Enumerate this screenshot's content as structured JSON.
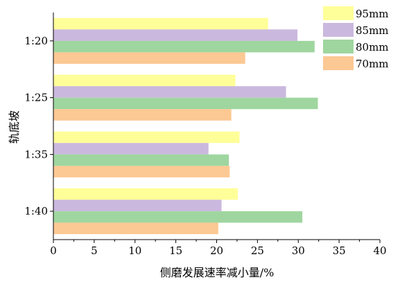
{
  "chart_data": {
    "type": "bar",
    "orientation": "horizontal",
    "title": "",
    "xlabel": "侧磨发展速率减小量/%",
    "ylabel": "轨底坡",
    "xlim": [
      0,
      40
    ],
    "xticks": [
      "0",
      "5",
      "10",
      "15",
      "20",
      "25",
      "30",
      "35",
      "40"
    ],
    "categories": [
      "1:20",
      "1:25",
      "1:35",
      "1:40"
    ],
    "series": [
      {
        "name": "95mm",
        "color": "#FFFF99",
        "values": [
          26.3,
          22.3,
          22.8,
          22.6
        ]
      },
      {
        "name": "85mm",
        "color": "#CBB8DE",
        "values": [
          29.9,
          28.5,
          19.0,
          20.6
        ]
      },
      {
        "name": "80mm",
        "color": "#9FD69F",
        "values": [
          32.0,
          32.4,
          21.5,
          30.5
        ]
      },
      {
        "name": "70mm",
        "color": "#FCC893",
        "values": [
          23.5,
          21.8,
          21.6,
          20.2
        ]
      }
    ],
    "grid": false,
    "legend": "top-right"
  }
}
